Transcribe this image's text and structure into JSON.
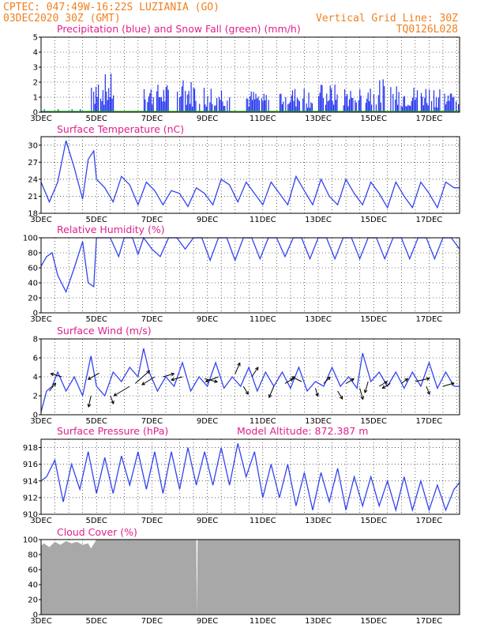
{
  "header": {
    "line1": "CPTEC:   047:49W-16:22S   LUZIANIA (GO)",
    "line2": "03DEC2020 30Z (GMT)",
    "right1": "Vertical Grid Line: 30Z",
    "right2": "TQ0126L028"
  },
  "colors": {
    "blue": "#2233ee",
    "green": "#22aa22",
    "gray": "#a8a8a8",
    "title": "#e0208a",
    "header": "#f08020"
  },
  "x_axis": {
    "labels": [
      "3DEC",
      "5DEC",
      "7DEC",
      "9DEC",
      "11DEC",
      "13DEC",
      "15DEC",
      "17DEC"
    ],
    "day_start": 3,
    "day_end": 18.1
  },
  "chart_data": [
    {
      "id": "precip",
      "type": "bar",
      "title": "Precipitation (blue) and Snow Fall (green) (mm/h)",
      "ylim": [
        0,
        5
      ],
      "yticks": [
        0,
        1,
        2,
        3,
        4,
        5
      ],
      "series": [
        {
          "name": "Precipitation",
          "color": "#2233ee",
          "clusters": [
            {
              "start": 4.8,
              "end": 5.6,
              "peak": 2.6
            },
            {
              "start": 6.7,
              "end": 7.6,
              "peak": 1.9
            },
            {
              "start": 7.9,
              "end": 8.6,
              "peak": 2.2
            },
            {
              "start": 8.7,
              "end": 9.8,
              "peak": 1.9
            },
            {
              "start": 10.4,
              "end": 11.2,
              "peak": 1.5
            },
            {
              "start": 11.6,
              "end": 12.8,
              "peak": 1.7
            },
            {
              "start": 13.0,
              "end": 13.7,
              "peak": 1.9
            },
            {
              "start": 13.9,
              "end": 14.6,
              "peak": 1.8
            },
            {
              "start": 14.7,
              "end": 15.4,
              "peak": 2.2
            },
            {
              "start": 15.6,
              "end": 16.6,
              "peak": 1.8
            },
            {
              "start": 16.7,
              "end": 17.4,
              "peak": 1.9
            },
            {
              "start": 17.5,
              "end": 18.1,
              "peak": 1.5
            }
          ]
        },
        {
          "name": "Snow Fall",
          "color": "#22aa22",
          "constant": 0
        }
      ]
    },
    {
      "id": "temp",
      "type": "line",
      "title": "Surface Temperature (nC)",
      "ylim": [
        18,
        31.5
      ],
      "yticks": [
        18,
        21,
        24,
        27,
        30
      ],
      "x": [
        3.0,
        3.3,
        3.6,
        3.9,
        4.2,
        4.5,
        4.7,
        4.9,
        5.0,
        5.3,
        5.6,
        5.9,
        6.2,
        6.5,
        6.8,
        7.1,
        7.4,
        7.7,
        8.0,
        8.3,
        8.6,
        8.9,
        9.2,
        9.5,
        9.8,
        10.1,
        10.4,
        10.7,
        11.0,
        11.3,
        11.6,
        11.9,
        12.2,
        12.5,
        12.8,
        13.1,
        13.4,
        13.7,
        14.0,
        14.3,
        14.6,
        14.9,
        15.2,
        15.5,
        15.8,
        16.1,
        16.4,
        16.7,
        17.0,
        17.3,
        17.6,
        17.9,
        18.1
      ],
      "values": [
        23.5,
        20.0,
        23.5,
        30.8,
        26.0,
        20.5,
        27.5,
        29.0,
        24.0,
        22.5,
        20.0,
        24.5,
        23.0,
        19.5,
        23.5,
        22.0,
        19.5,
        22.0,
        21.5,
        19.2,
        22.5,
        21.5,
        19.5,
        24.0,
        23.0,
        20.0,
        23.5,
        21.5,
        19.5,
        23.5,
        21.5,
        19.5,
        24.5,
        22.0,
        19.5,
        24.0,
        21.0,
        19.5,
        24.0,
        21.5,
        19.5,
        23.5,
        21.5,
        19.0,
        23.5,
        21.0,
        19.0,
        23.5,
        21.5,
        19.0,
        23.5,
        22.5,
        22.5
      ]
    },
    {
      "id": "rh",
      "type": "line",
      "title": "Relative Humidity (%)",
      "ylim": [
        0,
        100
      ],
      "yticks": [
        0,
        20,
        40,
        60,
        80,
        100
      ],
      "x": [
        3.0,
        3.2,
        3.4,
        3.6,
        3.9,
        4.2,
        4.5,
        4.7,
        4.9,
        5.0,
        5.2,
        5.5,
        5.8,
        6.0,
        6.3,
        6.5,
        6.7,
        7.0,
        7.3,
        7.6,
        7.9,
        8.2,
        8.5,
        8.8,
        9.1,
        9.4,
        9.7,
        10.0,
        10.3,
        10.6,
        10.9,
        11.2,
        11.5,
        11.8,
        12.1,
        12.4,
        12.7,
        13.0,
        13.3,
        13.6,
        13.9,
        14.2,
        14.5,
        14.8,
        15.1,
        15.4,
        15.7,
        16.0,
        16.3,
        16.6,
        16.9,
        17.2,
        17.5,
        17.8,
        18.1
      ],
      "values": [
        62,
        75,
        80,
        50,
        28,
        60,
        95,
        40,
        35,
        100,
        100,
        100,
        75,
        100,
        100,
        78,
        100,
        85,
        75,
        100,
        100,
        85,
        100,
        100,
        70,
        100,
        100,
        70,
        100,
        100,
        72,
        100,
        100,
        75,
        100,
        100,
        72,
        100,
        100,
        72,
        100,
        100,
        72,
        100,
        100,
        72,
        100,
        100,
        72,
        100,
        100,
        72,
        100,
        100,
        85
      ]
    },
    {
      "id": "wind",
      "type": "line",
      "title": "Surface Wind (m/s)",
      "ylim": [
        0,
        8
      ],
      "yticks": [
        0,
        2,
        4,
        6,
        8
      ],
      "x": [
        3.0,
        3.2,
        3.4,
        3.6,
        3.9,
        4.2,
        4.5,
        4.8,
        5.0,
        5.3,
        5.6,
        5.9,
        6.2,
        6.5,
        6.7,
        6.9,
        7.2,
        7.5,
        7.8,
        8.1,
        8.4,
        8.7,
        9.0,
        9.3,
        9.6,
        9.9,
        10.2,
        10.5,
        10.8,
        11.1,
        11.4,
        11.7,
        12.0,
        12.3,
        12.6,
        12.9,
        13.2,
        13.5,
        13.8,
        14.1,
        14.4,
        14.6,
        14.9,
        15.2,
        15.5,
        15.8,
        16.1,
        16.4,
        16.7,
        17.0,
        17.3,
        17.6,
        17.9,
        18.1
      ],
      "values": [
        0.3,
        2.5,
        3.0,
        4.5,
        2.5,
        4.0,
        2.0,
        6.2,
        3.0,
        2.0,
        4.5,
        3.5,
        5.0,
        4.0,
        7.0,
        4.5,
        2.5,
        4.0,
        3.0,
        5.5,
        2.5,
        4.0,
        3.0,
        5.5,
        2.8,
        4.0,
        3.0,
        5.0,
        2.5,
        4.5,
        3.0,
        4.5,
        2.8,
        5.0,
        2.5,
        3.5,
        3.0,
        5.0,
        3.0,
        4.0,
        2.8,
        6.5,
        3.5,
        4.5,
        3.0,
        4.5,
        2.8,
        4.5,
        3.0,
        5.5,
        2.8,
        4.5,
        3.0,
        3.0
      ],
      "arrows": [
        {
          "x": 3.3,
          "y": 2.5,
          "dx": 8,
          "dy": -10
        },
        {
          "x": 3.75,
          "y": 4.0,
          "dx": -14,
          "dy": -4
        },
        {
          "x": 4.8,
          "y": 2.0,
          "dx": -3,
          "dy": 14
        },
        {
          "x": 5.1,
          "y": 4.4,
          "dx": -14,
          "dy": 8
        },
        {
          "x": 5.5,
          "y": 2.0,
          "dx": 4,
          "dy": 10
        },
        {
          "x": 6.2,
          "y": 3.0,
          "dx": -20,
          "dy": 12
        },
        {
          "x": 6.4,
          "y": 3.3,
          "dx": 18,
          "dy": -16
        },
        {
          "x": 7.1,
          "y": 4.0,
          "dx": -16,
          "dy": 10
        },
        {
          "x": 7.4,
          "y": 4.0,
          "dx": 14,
          "dy": -4
        },
        {
          "x": 8.1,
          "y": 4.0,
          "dx": -14,
          "dy": 4
        },
        {
          "x": 8.9,
          "y": 3.8,
          "dx": 16,
          "dy": 4
        },
        {
          "x": 9.4,
          "y": 4.0,
          "dx": -16,
          "dy": 6
        },
        {
          "x": 10.0,
          "y": 4.3,
          "dx": 6,
          "dy": -14
        },
        {
          "x": 10.3,
          "y": 3.0,
          "dx": 6,
          "dy": 10
        },
        {
          "x": 10.6,
          "y": 4.0,
          "dx": 8,
          "dy": -12
        },
        {
          "x": 11.4,
          "y": 3.0,
          "dx": -6,
          "dy": 14
        },
        {
          "x": 11.8,
          "y": 3.3,
          "dx": 10,
          "dy": -6
        },
        {
          "x": 12.4,
          "y": 3.5,
          "dx": -12,
          "dy": -6
        },
        {
          "x": 12.9,
          "y": 2.8,
          "dx": 3,
          "dy": 10
        },
        {
          "x": 13.2,
          "y": 3.3,
          "dx": 8,
          "dy": -8
        },
        {
          "x": 13.7,
          "y": 2.5,
          "dx": 6,
          "dy": 10
        },
        {
          "x": 14.0,
          "y": 3.3,
          "dx": 10,
          "dy": -6
        },
        {
          "x": 14.5,
          "y": 2.8,
          "dx": 4,
          "dy": 14
        },
        {
          "x": 14.8,
          "y": 3.5,
          "dx": -4,
          "dy": 14
        },
        {
          "x": 15.2,
          "y": 3.0,
          "dx": 10,
          "dy": -6
        },
        {
          "x": 15.6,
          "y": 3.3,
          "dx": -10,
          "dy": 6
        },
        {
          "x": 16.0,
          "y": 3.3,
          "dx": 8,
          "dy": -6
        },
        {
          "x": 16.5,
          "y": 3.5,
          "dx": 18,
          "dy": -4
        },
        {
          "x": 16.9,
          "y": 3.0,
          "dx": 4,
          "dy": 10
        },
        {
          "x": 17.5,
          "y": 3.0,
          "dx": 14,
          "dy": -4
        }
      ]
    },
    {
      "id": "pres",
      "type": "line",
      "title": "Surface Pressure (hPa)",
      "subtitle": "Model Altitude: 872.387 m",
      "ylim": [
        910,
        919
      ],
      "yticks": [
        910,
        912,
        914,
        916,
        918
      ],
      "x": [
        3.0,
        3.2,
        3.5,
        3.8,
        4.1,
        4.4,
        4.7,
        5.0,
        5.3,
        5.6,
        5.9,
        6.2,
        6.5,
        6.8,
        7.1,
        7.4,
        7.7,
        8.0,
        8.3,
        8.6,
        8.9,
        9.2,
        9.5,
        9.8,
        10.1,
        10.4,
        10.7,
        11.0,
        11.3,
        11.6,
        11.9,
        12.2,
        12.5,
        12.8,
        13.1,
        13.4,
        13.7,
        14.0,
        14.3,
        14.6,
        14.9,
        15.2,
        15.5,
        15.8,
        16.1,
        16.4,
        16.7,
        17.0,
        17.3,
        17.6,
        17.9,
        18.1
      ],
      "values": [
        914.0,
        914.5,
        916.5,
        911.5,
        916.0,
        913.0,
        917.5,
        912.5,
        916.8,
        912.5,
        917.0,
        913.5,
        917.5,
        913.0,
        917.5,
        912.5,
        917.5,
        913.0,
        918.0,
        913.5,
        917.5,
        913.5,
        918.0,
        913.5,
        918.5,
        914.5,
        917.5,
        912.0,
        916.0,
        912.0,
        916.0,
        911.0,
        915.0,
        910.5,
        915.0,
        911.5,
        915.5,
        910.5,
        914.5,
        911.0,
        914.5,
        911.0,
        914.0,
        910.5,
        914.5,
        910.5,
        914.0,
        910.5,
        913.5,
        910.5,
        913.0,
        913.8
      ]
    },
    {
      "id": "cloud",
      "type": "area",
      "title": "Cloud Cover (%)",
      "ylim": [
        0,
        100
      ],
      "yticks": [
        0,
        20,
        40,
        60,
        80,
        100
      ],
      "x": [
        3.0,
        3.1,
        3.3,
        3.5,
        3.7,
        3.9,
        4.1,
        4.3,
        4.5,
        4.7,
        4.8,
        5.0,
        5.5,
        6.0,
        6.5,
        7.0,
        7.5,
        8.0,
        8.5,
        8.6,
        8.62,
        8.65,
        8.7,
        9.0,
        9.5,
        10.0,
        10.5,
        11.0,
        11.5,
        12.0,
        13.0,
        14.0,
        15.0,
        16.0,
        17.0,
        18.1
      ],
      "values": [
        92,
        95,
        90,
        97,
        93,
        98,
        95,
        97,
        93,
        95,
        88,
        100,
        100,
        100,
        100,
        100,
        100,
        100,
        100,
        100,
        0,
        100,
        100,
        100,
        100,
        100,
        100,
        100,
        100,
        100,
        100,
        100,
        100,
        100,
        100,
        100
      ]
    }
  ]
}
